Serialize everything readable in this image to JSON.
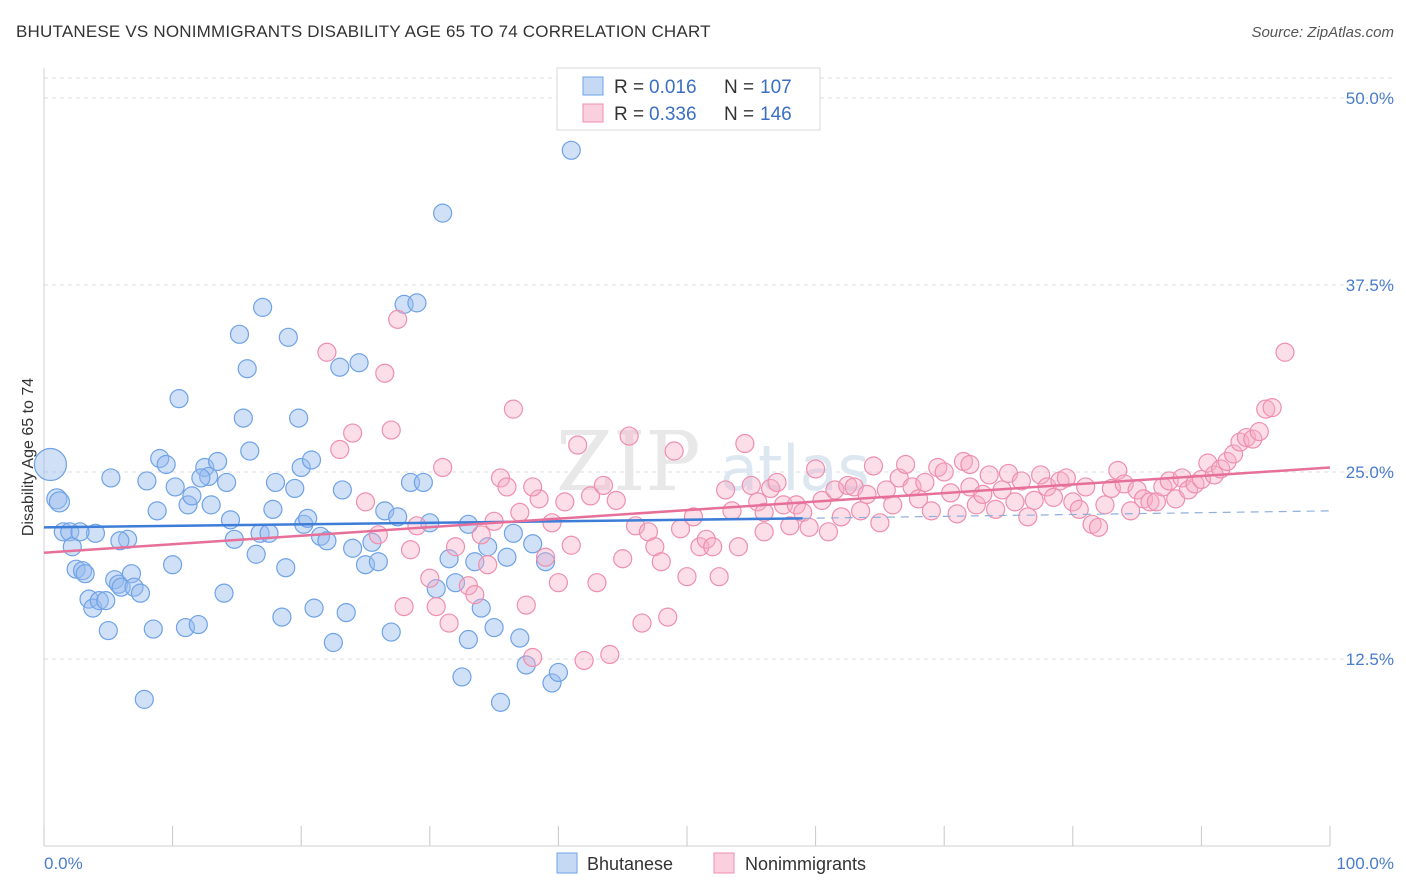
{
  "title": "BHUTANESE VS NONIMMIGRANTS DISABILITY AGE 65 TO 74 CORRELATION CHART",
  "source": "Source: ZipAtlas.com",
  "watermark": {
    "part1": "ZIP",
    "part2": "atlas"
  },
  "chart_data": {
    "type": "scatter",
    "ylabel": "Disability Age 65 to 74",
    "xlim": [
      0,
      100
    ],
    "ylim": [
      0,
      52
    ],
    "x_tick_labels": [
      "0.0%",
      "100.0%"
    ],
    "y_ticks": [
      12.5,
      25.0,
      37.5,
      50.0
    ],
    "y_tick_labels": [
      "12.5%",
      "25.0%",
      "37.5%",
      "50.0%"
    ],
    "grid": true,
    "legend_position": "top-center",
    "legend": [
      {
        "name": "Bhutanese",
        "r_label": "R =",
        "r_value": "0.016",
        "n_label": "N =",
        "n_value": "107",
        "color": "#6fa3e6"
      },
      {
        "name": "Nonimmigrants",
        "r_label": "R =",
        "r_value": "0.336",
        "n_label": "N =",
        "n_value": "146",
        "color": "#ef8fae"
      }
    ],
    "series": [
      {
        "name": "Bhutanese",
        "color": "#6fa3e6",
        "trend": {
          "x0": 0,
          "y0": 21.3,
          "x1": 59,
          "y1": 21.9,
          "dash_to_x": 100,
          "dash_to_y": 22.4
        },
        "points": [
          [
            0.5,
            25.5
          ],
          [
            1,
            23.2
          ],
          [
            1.2,
            23.0
          ],
          [
            1.5,
            21.0
          ],
          [
            2,
            21.0
          ],
          [
            2.2,
            20.0
          ],
          [
            2.5,
            18.5
          ],
          [
            3,
            18.4
          ],
          [
            3.2,
            18.2
          ],
          [
            3.5,
            16.5
          ],
          [
            3.8,
            15.9
          ],
          [
            4,
            20.9
          ],
          [
            4.3,
            16.4
          ],
          [
            4.8,
            16.4
          ],
          [
            5,
            14.4
          ],
          [
            5.2,
            24.6
          ],
          [
            5.5,
            17.8
          ],
          [
            5.8,
            17.5
          ],
          [
            6,
            17.3
          ],
          [
            6.5,
            20.5
          ],
          [
            6.8,
            18.2
          ],
          [
            7,
            17.3
          ],
          [
            7.5,
            16.9
          ],
          [
            7.8,
            9.8
          ],
          [
            8,
            24.4
          ],
          [
            8.5,
            14.5
          ],
          [
            8.8,
            22.4
          ],
          [
            9,
            25.9
          ],
          [
            9.5,
            25.5
          ],
          [
            10,
            18.8
          ],
          [
            10.5,
            29.9
          ],
          [
            11,
            14.6
          ],
          [
            11.2,
            22.8
          ],
          [
            11.5,
            23.4
          ],
          [
            12,
            14.8
          ],
          [
            12.5,
            25.3
          ],
          [
            12.8,
            24.7
          ],
          [
            13,
            22.8
          ],
          [
            13.5,
            25.7
          ],
          [
            14,
            16.9
          ],
          [
            14.2,
            24.3
          ],
          [
            14.5,
            21.8
          ],
          [
            14.8,
            20.5
          ],
          [
            15.2,
            34.2
          ],
          [
            15.5,
            28.6
          ],
          [
            15.8,
            31.9
          ],
          [
            16,
            26.4
          ],
          [
            16.5,
            19.5
          ],
          [
            16.8,
            20.9
          ],
          [
            17,
            36.0
          ],
          [
            17.5,
            20.9
          ],
          [
            17.8,
            22.5
          ],
          [
            18,
            24.3
          ],
          [
            18.5,
            15.3
          ],
          [
            18.8,
            18.6
          ],
          [
            19,
            34.0
          ],
          [
            19.5,
            23.9
          ],
          [
            19.8,
            28.6
          ],
          [
            20,
            25.3
          ],
          [
            20.2,
            21.5
          ],
          [
            20.5,
            21.9
          ],
          [
            20.8,
            25.8
          ],
          [
            21,
            15.9
          ],
          [
            21.5,
            20.7
          ],
          [
            22,
            20.4
          ],
          [
            22.5,
            13.6
          ],
          [
            23,
            32.0
          ],
          [
            23.2,
            23.8
          ],
          [
            23.5,
            15.6
          ],
          [
            24,
            19.9
          ],
          [
            24.5,
            32.3
          ],
          [
            25,
            18.8
          ],
          [
            25.5,
            20.3
          ],
          [
            26,
            19.0
          ],
          [
            26.5,
            22.4
          ],
          [
            27,
            14.3
          ],
          [
            28,
            36.2
          ],
          [
            28.5,
            24.3
          ],
          [
            29,
            36.3
          ],
          [
            29.5,
            24.3
          ],
          [
            30,
            21.6
          ],
          [
            30.5,
            17.2
          ],
          [
            31,
            42.3
          ],
          [
            31.5,
            19.2
          ],
          [
            32,
            17.6
          ],
          [
            32.5,
            11.3
          ],
          [
            33,
            13.8
          ],
          [
            33.5,
            19.0
          ],
          [
            34,
            15.9
          ],
          [
            34.5,
            20.0
          ],
          [
            35,
            14.6
          ],
          [
            35.5,
            9.6
          ],
          [
            36,
            19.3
          ],
          [
            36.5,
            20.9
          ],
          [
            37,
            13.9
          ],
          [
            37.5,
            12.1
          ],
          [
            38,
            20.2
          ],
          [
            39,
            19.0
          ],
          [
            39.5,
            10.9
          ],
          [
            40,
            11.6
          ],
          [
            41,
            46.5
          ],
          [
            33,
            21.5
          ],
          [
            27.5,
            22.0
          ],
          [
            5.9,
            20.4
          ],
          [
            2.8,
            21.0
          ],
          [
            12.2,
            24.6
          ],
          [
            10.2,
            24.0
          ]
        ]
      },
      {
        "name": "Nonimmigrants",
        "color": "#ef8fae",
        "trend": {
          "x0": 0,
          "y0": 19.6,
          "x1": 100,
          "y1": 25.3
        },
        "points": [
          [
            22,
            33.0
          ],
          [
            24,
            27.6
          ],
          [
            25,
            23.0
          ],
          [
            26,
            20.8
          ],
          [
            26.5,
            31.6
          ],
          [
            27,
            27.8
          ],
          [
            27.5,
            35.2
          ],
          [
            28,
            16.0
          ],
          [
            28.5,
            19.8
          ],
          [
            29,
            21.4
          ],
          [
            30,
            17.9
          ],
          [
            30.5,
            16.0
          ],
          [
            31,
            25.3
          ],
          [
            31.5,
            14.9
          ],
          [
            32,
            20.0
          ],
          [
            33,
            17.4
          ],
          [
            33.5,
            16.8
          ],
          [
            34,
            20.8
          ],
          [
            35,
            21.7
          ],
          [
            35.5,
            24.6
          ],
          [
            36,
            24.0
          ],
          [
            36.5,
            29.2
          ],
          [
            37,
            22.3
          ],
          [
            37.5,
            16.1
          ],
          [
            38,
            12.6
          ],
          [
            38.5,
            23.2
          ],
          [
            39,
            19.3
          ],
          [
            39.5,
            21.6
          ],
          [
            40,
            17.6
          ],
          [
            40.5,
            23.0
          ],
          [
            41,
            20.1
          ],
          [
            41.5,
            26.8
          ],
          [
            42,
            12.4
          ],
          [
            42.5,
            23.4
          ],
          [
            43,
            17.6
          ],
          [
            43.5,
            24.1
          ],
          [
            44,
            12.8
          ],
          [
            44.5,
            23.1
          ],
          [
            45,
            19.2
          ],
          [
            45.5,
            27.4
          ],
          [
            46,
            21.4
          ],
          [
            46.5,
            14.9
          ],
          [
            47,
            21.0
          ],
          [
            47.5,
            20.0
          ],
          [
            48,
            19.0
          ],
          [
            48.5,
            15.3
          ],
          [
            49,
            26.4
          ],
          [
            49.5,
            21.2
          ],
          [
            50,
            18.0
          ],
          [
            50.5,
            22.0
          ],
          [
            51,
            20.0
          ],
          [
            51.5,
            20.5
          ],
          [
            52,
            20.0
          ],
          [
            52.5,
            18.0
          ],
          [
            53,
            23.8
          ],
          [
            53.5,
            22.4
          ],
          [
            54,
            20.0
          ],
          [
            54.5,
            26.9
          ],
          [
            55,
            24.1
          ],
          [
            55.5,
            23.0
          ],
          [
            56,
            22.3
          ],
          [
            56.5,
            23.9
          ],
          [
            57,
            24.3
          ],
          [
            57.5,
            22.8
          ],
          [
            58,
            21.4
          ],
          [
            58.5,
            22.8
          ],
          [
            59,
            22.3
          ],
          [
            59.5,
            21.3
          ],
          [
            60,
            25.2
          ],
          [
            60.5,
            23.1
          ],
          [
            61,
            21.0
          ],
          [
            61.5,
            23.8
          ],
          [
            62,
            22.0
          ],
          [
            62.5,
            24.1
          ],
          [
            63,
            24.0
          ],
          [
            63.5,
            22.4
          ],
          [
            64,
            23.5
          ],
          [
            64.5,
            25.4
          ],
          [
            65,
            21.6
          ],
          [
            65.5,
            23.8
          ],
          [
            66,
            22.8
          ],
          [
            66.5,
            24.6
          ],
          [
            67,
            25.5
          ],
          [
            67.5,
            24.0
          ],
          [
            68,
            23.2
          ],
          [
            68.5,
            24.3
          ],
          [
            69,
            22.4
          ],
          [
            69.5,
            25.3
          ],
          [
            70,
            25.0
          ],
          [
            70.5,
            23.6
          ],
          [
            71,
            22.2
          ],
          [
            71.5,
            25.7
          ],
          [
            72,
            24.0
          ],
          [
            72.5,
            22.8
          ],
          [
            73,
            23.5
          ],
          [
            73.5,
            24.8
          ],
          [
            74,
            22.5
          ],
          [
            74.5,
            23.8
          ],
          [
            75,
            24.9
          ],
          [
            75.5,
            23.0
          ],
          [
            76,
            24.4
          ],
          [
            76.5,
            22.0
          ],
          [
            77,
            23.1
          ],
          [
            77.5,
            24.8
          ],
          [
            78,
            24.0
          ],
          [
            78.5,
            23.3
          ],
          [
            79,
            24.4
          ],
          [
            79.5,
            24.6
          ],
          [
            80,
            23.0
          ],
          [
            80.5,
            22.5
          ],
          [
            81,
            24.0
          ],
          [
            81.5,
            21.5
          ],
          [
            82,
            21.3
          ],
          [
            82.5,
            22.8
          ],
          [
            83,
            23.9
          ],
          [
            83.5,
            25.1
          ],
          [
            84,
            24.2
          ],
          [
            84.5,
            22.4
          ],
          [
            85,
            23.8
          ],
          [
            85.5,
            23.2
          ],
          [
            86,
            23.0
          ],
          [
            86.5,
            23.0
          ],
          [
            87,
            24.0
          ],
          [
            87.5,
            24.4
          ],
          [
            88,
            23.2
          ],
          [
            88.5,
            24.6
          ],
          [
            89,
            23.8
          ],
          [
            89.5,
            24.2
          ],
          [
            90,
            24.5
          ],
          [
            90.5,
            25.6
          ],
          [
            91,
            24.8
          ],
          [
            91.5,
            25.2
          ],
          [
            92,
            25.7
          ],
          [
            92.5,
            26.2
          ],
          [
            93,
            27.0
          ],
          [
            93.5,
            27.3
          ],
          [
            94,
            27.2
          ],
          [
            94.5,
            27.7
          ],
          [
            95,
            29.2
          ],
          [
            95.5,
            29.3
          ],
          [
            96.5,
            33.0
          ],
          [
            23,
            26.5
          ],
          [
            34.5,
            18.8
          ],
          [
            38,
            24.0
          ],
          [
            56,
            21.0
          ],
          [
            72,
            25.5
          ]
        ]
      }
    ]
  }
}
